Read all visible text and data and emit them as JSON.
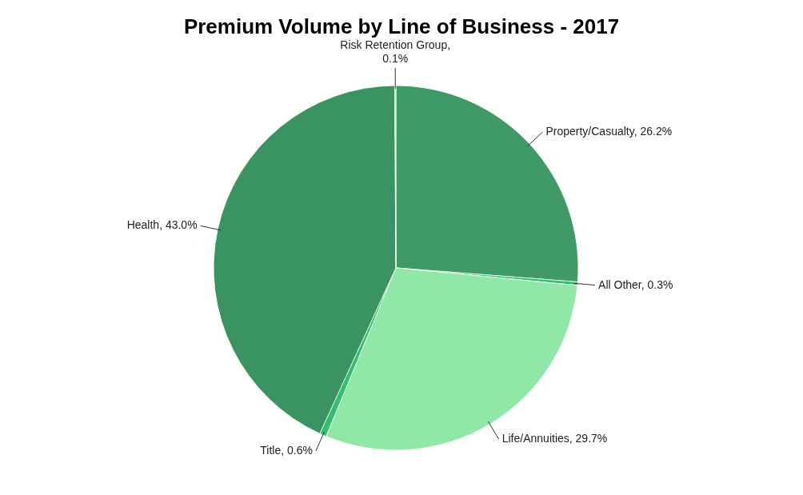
{
  "chart_data": {
    "type": "pie",
    "title": "Premium Volume by Line of Business - 2017",
    "categories": [
      "Property/Casualty",
      "All Other",
      "Life/Annuities",
      "Title",
      "Health",
      "Risk Retention Group"
    ],
    "values": [
      26.2,
      0.3,
      29.7,
      0.6,
      43.0,
      0.1
    ],
    "value_labels": [
      ", 26.2%",
      ", 0.3%",
      ", 29.7%",
      ", 0.6%",
      ", 43.0%",
      ",\n0.1%"
    ],
    "colors": [
      "#3f9a66",
      "#2fbf6e",
      "#8fe8a6",
      "#2fbf6e",
      "#3a9462",
      "#a8ecbc"
    ]
  }
}
